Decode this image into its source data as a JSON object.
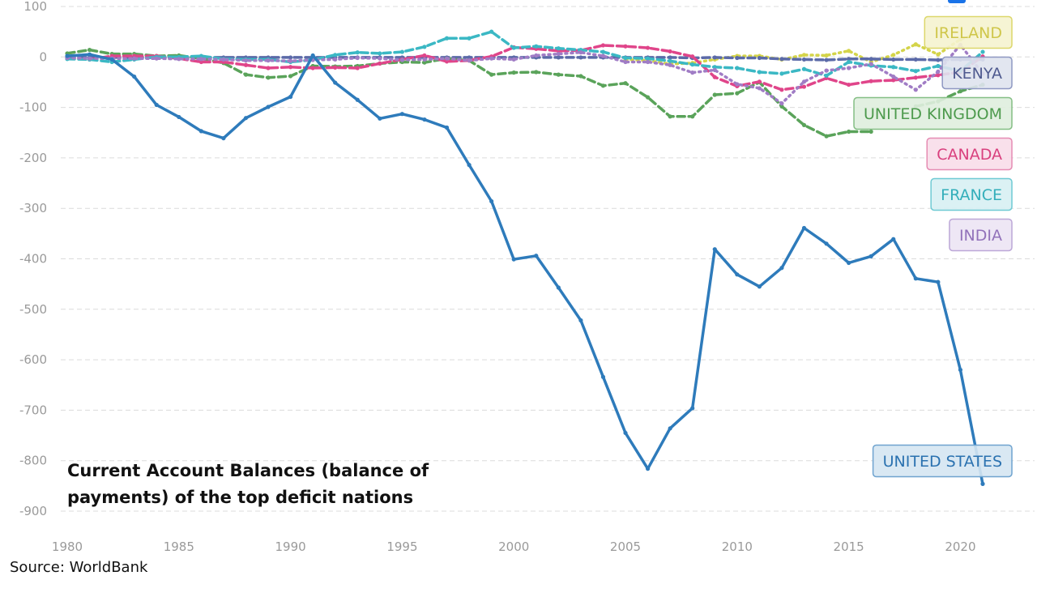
{
  "chart_data": {
    "type": "line",
    "title": "Current Account Balances (balance of payments) of the top deficit nations",
    "xlabel": "",
    "ylabel": "",
    "ylim": [
      -900,
      100
    ],
    "xlim": [
      1980,
      2021
    ],
    "yticks": [
      100,
      0,
      -100,
      -200,
      -300,
      -400,
      -500,
      -600,
      -700,
      -800,
      -900
    ],
    "xticks": [
      1980,
      1985,
      1990,
      1995,
      2000,
      2005,
      2010,
      2015,
      2020
    ],
    "grid": true,
    "x": [
      1980,
      1981,
      1982,
      1983,
      1984,
      1985,
      1986,
      1987,
      1988,
      1989,
      1990,
      1991,
      1992,
      1993,
      1994,
      1995,
      1996,
      1997,
      1998,
      1999,
      2000,
      2001,
      2002,
      2003,
      2004,
      2005,
      2006,
      2007,
      2008,
      2009,
      2010,
      2011,
      2012,
      2013,
      2014,
      2015,
      2016,
      2017,
      2018,
      2019,
      2020,
      2021
    ],
    "series": [
      {
        "name": "IRELAND",
        "color": "#d4d44a",
        "style": "dotted",
        "values": [
          null,
          null,
          null,
          null,
          null,
          null,
          null,
          null,
          null,
          null,
          null,
          null,
          null,
          null,
          null,
          null,
          null,
          null,
          null,
          null,
          null,
          null,
          null,
          null,
          null,
          -5,
          -7,
          -14,
          -12,
          -5,
          2,
          2,
          -5,
          4,
          3,
          12,
          -10,
          4,
          25,
          5,
          35,
          50
        ]
      },
      {
        "name": "KENYA",
        "color": "#5b6aa8",
        "style": "dashed",
        "values": [
          -1,
          -1,
          -1,
          -1,
          -1,
          -1,
          -1,
          -1,
          -1,
          -1,
          -1,
          -1,
          -1,
          -1,
          -1,
          -1,
          -1,
          -1,
          -1,
          -1,
          -1,
          -1,
          -1,
          -1,
          -1,
          -1,
          -1,
          -1,
          -2,
          -1,
          -2,
          -2,
          -4,
          -5,
          -6,
          -4,
          -4,
          -5,
          -5,
          -6,
          -5,
          -5
        ]
      },
      {
        "name": "UNITED KINGDOM",
        "color": "#5aa35a",
        "style": "dashed",
        "values": [
          7,
          14,
          6,
          6,
          2,
          3,
          -3,
          -12,
          -35,
          -41,
          -38,
          -18,
          -19,
          -18,
          -13,
          -10,
          -11,
          -3,
          -7,
          -35,
          -31,
          -30,
          -35,
          -38,
          -57,
          -52,
          -80,
          -118,
          -118,
          -75,
          -72,
          -50,
          -98,
          -135,
          -157,
          -148,
          -148,
          null,
          -98,
          -88,
          -68,
          -55
        ]
      },
      {
        "name": "CANADA",
        "color": "#e0458a",
        "style": "dashed",
        "values": [
          -2,
          -5,
          2,
          2,
          2,
          -3,
          -10,
          -10,
          -16,
          -22,
          -20,
          -22,
          -21,
          -22,
          -13,
          -5,
          3,
          -9,
          -7,
          1,
          19,
          16,
          12,
          13,
          23,
          21,
          18,
          11,
          1,
          -40,
          -58,
          -49,
          -65,
          -59,
          -42,
          -55,
          -48,
          -46,
          -41,
          -36,
          -30,
          1
        ]
      },
      {
        "name": "FRANCE",
        "color": "#3bb8c4",
        "style": "dashed",
        "values": [
          -4,
          -5,
          -10,
          -5,
          0,
          0,
          2,
          -4,
          -5,
          -5,
          -10,
          -6,
          4,
          9,
          7,
          10,
          20,
          37,
          37,
          50,
          18,
          21,
          17,
          14,
          10,
          -2,
          -3,
          -8,
          -15,
          -20,
          -22,
          -30,
          -33,
          -24,
          -37,
          -10,
          -17,
          -20,
          -28,
          -18,
          -28,
          10
        ]
      },
      {
        "name": "INDIA",
        "color": "#a07cc5",
        "style": "dotted",
        "values": [
          -2,
          -3,
          -3,
          -3,
          -3,
          -4,
          -4,
          -5,
          -7,
          -7,
          -8,
          -6,
          -5,
          -2,
          -3,
          -6,
          -5,
          -3,
          -7,
          -3,
          -5,
          3,
          6,
          9,
          2,
          -10,
          -10,
          -16,
          -31,
          -26,
          -54,
          -62,
          -92,
          -49,
          -27,
          -22,
          -14,
          -39,
          -65,
          -29,
          24,
          -33
        ]
      },
      {
        "name": "UNITED STATES",
        "color": "#2e7bbb",
        "style": "solid",
        "values": [
          2,
          5,
          -5,
          -39,
          -95,
          -119,
          -147,
          -161,
          -121,
          -99,
          -79,
          3,
          -51,
          -85,
          -122,
          -113,
          -124,
          -140,
          -214,
          -286,
          -401,
          -394,
          -457,
          -522,
          -634,
          -745,
          -816,
          -736,
          -696,
          -381,
          -431,
          -455,
          -418,
          -339,
          -370,
          -408,
          -395,
          -361,
          -439,
          -446,
          -620,
          -846
        ]
      }
    ],
    "labels": [
      {
        "series": "IRELAND",
        "text": "IRELAND",
        "fill": "#f5f3cf",
        "stroke": "#dcd76a",
        "textColor": "#cfc64a"
      },
      {
        "series": "KENYA",
        "text": "KENYA",
        "fill": "#dfe3ee",
        "stroke": "#8e98c2",
        "textColor": "#4f5a8f"
      },
      {
        "series": "UNITED KINGDOM",
        "text": "UNITED KINGDOM",
        "fill": "#dfeede",
        "stroke": "#84be84",
        "textColor": "#4d9a4d"
      },
      {
        "series": "CANADA",
        "text": "CANADA",
        "fill": "#f8dde9",
        "stroke": "#e58cb3",
        "textColor": "#d9407e"
      },
      {
        "series": "FRANCE",
        "text": "FRANCE",
        "fill": "#d7f0f3",
        "stroke": "#6fcad3",
        "textColor": "#33aeba"
      },
      {
        "series": "INDIA",
        "text": "INDIA",
        "fill": "#ece4f4",
        "stroke": "#bca7d7",
        "textColor": "#9272ba"
      },
      {
        "series": "UNITED STATES",
        "text": "UNITED STATES",
        "fill": "#d5e5f2",
        "stroke": "#6fa3cf",
        "textColor": "#2b72b0"
      }
    ]
  },
  "title_line1": "Current Account Balances (balance of",
  "title_line2": "payments) of the top deficit nations",
  "source": "Source: WorldBank"
}
